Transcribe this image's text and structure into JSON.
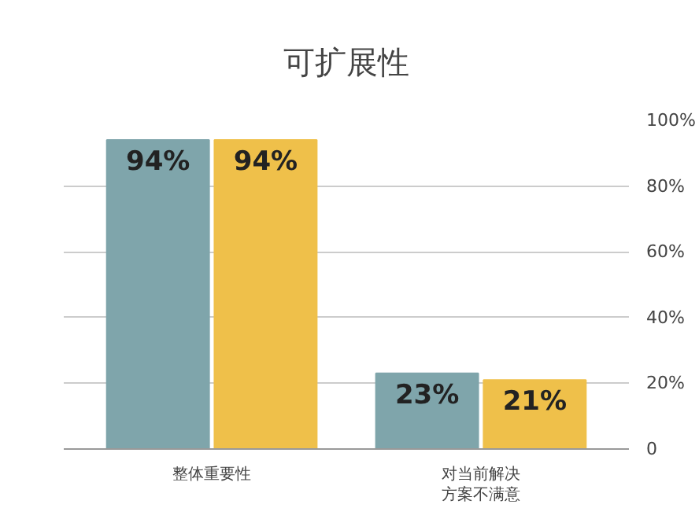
{
  "chart_data": {
    "type": "bar",
    "title": "可扩展性",
    "categories": [
      "整体重要性",
      "对当前解决方案不满意"
    ],
    "series": [
      {
        "color": "#7fa5ab",
        "values": [
          94,
          23
        ],
        "value_labels": [
          "94%",
          "23%"
        ]
      },
      {
        "color": "#efc04a",
        "values": [
          94,
          21
        ],
        "value_labels": [
          "94%",
          "21%"
        ]
      }
    ],
    "ylim": [
      0,
      100
    ],
    "yticks": [
      {
        "value": 0,
        "label": "0"
      },
      {
        "value": 20,
        "label": "20%"
      },
      {
        "value": 40,
        "label": "40%"
      },
      {
        "value": 60,
        "label": "60%"
      },
      {
        "value": 80,
        "label": "80%"
      },
      {
        "value": 100,
        "label": "100%"
      }
    ],
    "grid": "y"
  }
}
